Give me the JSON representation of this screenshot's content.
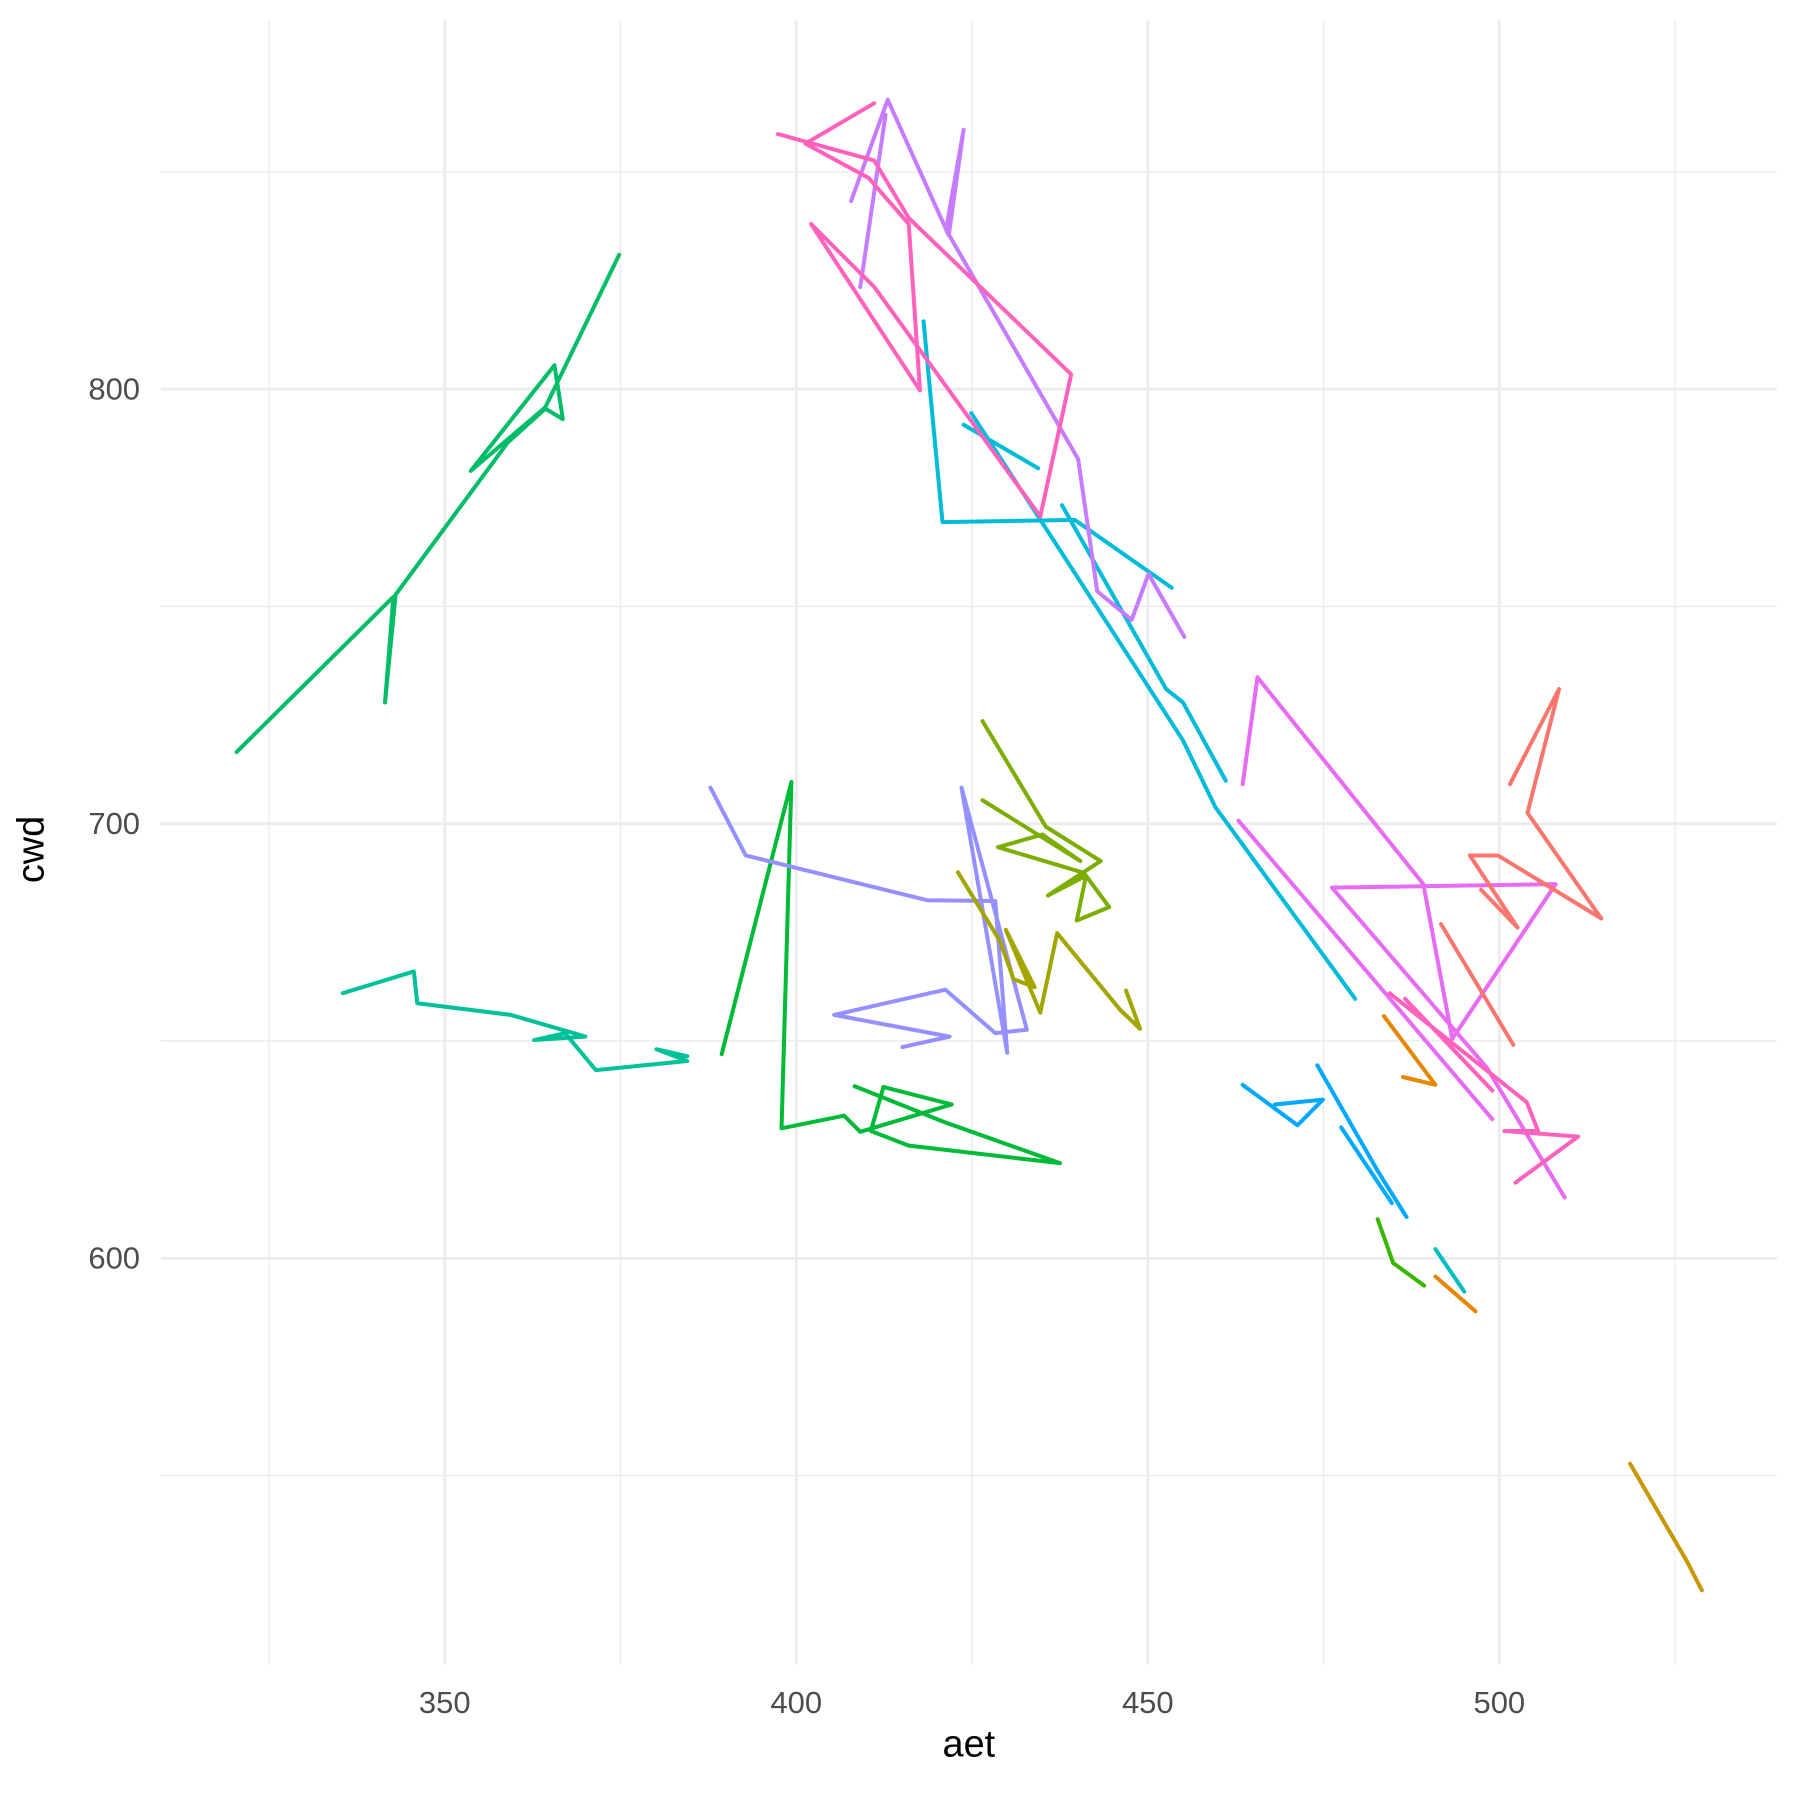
{
  "chart_data": {
    "type": "line",
    "x_label": "aet",
    "y_label": "cwd",
    "xlim": [
      309.6,
      539.5
    ],
    "ylim": [
      506.5,
      884.8
    ],
    "xticks": [
      350,
      400,
      450,
      500
    ],
    "yticks": [
      600,
      700,
      800
    ],
    "x_minor_ticks": [
      325,
      375,
      425,
      475,
      525
    ],
    "y_minor_ticks": [
      550,
      650,
      750,
      850
    ],
    "grid": true,
    "series": [
      {
        "color": "#00BE67",
        "x": [
          320.4,
          342.7,
          341.5,
          343.0,
          359.0,
          364.3,
          366.8,
          365.6,
          353.7,
          364.3,
          374.8
        ],
        "values": [
          716.5,
          752.2,
          727.9,
          752.7,
          787.8,
          795.5,
          793.1,
          805.5,
          781.2,
          795.8,
          830.9
        ]
      },
      {
        "color": "#00C19A",
        "x": [
          335.5,
          345.6,
          346.1,
          359.4,
          370.0,
          362.7,
          367.1,
          371.5,
          384.5,
          380.1,
          384.5
        ],
        "values": [
          661.0,
          666.0,
          658.7,
          656.0,
          651.0,
          650.2,
          651.8,
          643.3,
          645.4,
          648.1,
          646.5
        ]
      },
      {
        "color": "#00BA38",
        "x": [
          389.4,
          399.3,
          397.9,
          406.8,
          409.1,
          422.1,
          412.4,
          410.6,
          416.0,
          437.5,
          421.3,
          408.3
        ],
        "values": [
          647.0,
          709.6,
          629.9,
          632.8,
          629.1,
          635.4,
          639.4,
          629.3,
          625.9,
          621.9,
          631.2,
          639.6
        ]
      },
      {
        "color": "#9590FF",
        "x": [
          387.8,
          392.8,
          418.6,
          428.3,
          430.0,
          423.5,
          432.8,
          428.3,
          421.2,
          405.4,
          421.8,
          415.1
        ],
        "values": [
          708.3,
          692.7,
          682.4,
          682.2,
          647.3,
          708.3,
          652.6,
          651.8,
          661.8,
          656.0,
          651.0,
          648.6
        ]
      },
      {
        "color": "#7CAE00",
        "x": [
          426.5,
          435.5,
          443.3,
          435.8,
          441.2,
          439.9,
          444.5,
          440.9,
          428.7,
          435.0,
          440.4,
          426.5
        ],
        "values": [
          723.6,
          699.3,
          691.4,
          683.5,
          688.0,
          677.7,
          680.8,
          688.7,
          694.6,
          697.5,
          691.4,
          705.4
        ]
      },
      {
        "color": "#A3A500",
        "x": [
          423.0,
          429.0,
          430.9,
          433.9,
          429.8,
          434.7,
          437.1,
          446.1,
          448.9,
          446.9
        ],
        "values": [
          688.8,
          672.9,
          664.2,
          662.4,
          675.6,
          656.5,
          674.8,
          657.1,
          652.8,
          661.6
        ]
      },
      {
        "color": "#00BCD8",
        "x": [
          418.1,
          420.8,
          439.6,
          453.4,
          null,
          423.8,
          434.4,
          null,
          437.8,
          452.6,
          455.0,
          461.1,
          null,
          424.9,
          455.0,
          459.6,
          479.5
        ],
        "values": [
          815.6,
          769.4,
          769.9,
          754.3,
          null,
          791.8,
          781.8,
          null,
          773.3,
          731.0,
          727.9,
          709.9,
          null,
          794.5,
          719.2,
          703.8,
          659.7
        ]
      },
      {
        "color": "#C77CFF",
        "x": [
          407.8,
          413.0,
          421.7,
          423.8,
          421.3,
          440.1,
          442.8,
          447.7,
          450.1,
          455.2,
          null,
          409.1,
          412.7
        ],
        "values": [
          843.3,
          866.6,
          835.4,
          859.7,
          836.7,
          783.9,
          753.5,
          746.9,
          757.5,
          743.0,
          null,
          823.5,
          863.1
        ]
      },
      {
        "color": "#E76BF3",
        "x": [
          463.5,
          465.6,
          489.2,
          493.3,
          508.0,
          476.2,
          498.2,
          509.3,
          null,
          462.9,
          499.0
        ],
        "values": [
          709.1,
          733.7,
          686.1,
          650.5,
          686.1,
          685.3,
          643.9,
          614.0,
          null,
          700.7,
          632.0
        ]
      },
      {
        "color": "#FF62BC",
        "x": [
          397.4,
          411.1,
          416.0,
          439.1,
          434.7,
          411.1,
          402.1,
          417.6,
          416.0,
          410.3,
          401.3,
          411.1,
          null,
          484.4,
          503.9,
          505.5,
          500.7,
          511.2,
          502.3,
          null,
          486.6,
          499.0
        ],
        "values": [
          858.7,
          852.6,
          839.4,
          803.4,
          770.7,
          823.5,
          838.0,
          799.7,
          838.0,
          848.6,
          856.5,
          865.8,
          null,
          661.0,
          635.9,
          629.3,
          629.3,
          628.0,
          617.4,
          null,
          659.7,
          638.6
        ]
      },
      {
        "color": "#F8766D",
        "x": [
          501.5,
          508.5,
          504.0,
          514.5,
          499.8,
          495.8,
          502.6,
          497.4,
          null,
          491.7,
          502.0
        ],
        "values": [
          709.1,
          731.0,
          702.5,
          678.2,
          692.7,
          692.7,
          676.1,
          684.8,
          null,
          676.9,
          649.1
        ]
      },
      {
        "color": "#00A9FF",
        "x": [
          463.5,
          471.3,
          474.9,
          468.1,
          null,
          474.1,
          482.7,
          486.8,
          null,
          477.5,
          484.7
        ],
        "values": [
          639.9,
          630.6,
          636.5,
          635.4,
          null,
          644.4,
          620.1,
          609.5,
          null,
          630.1,
          612.7
        ]
      },
      {
        "color": "#39B600",
        "x": [
          482.7,
          484.9,
          489.3
        ],
        "values": [
          609.0,
          598.9,
          593.7
        ]
      },
      {
        "color": "#00BFC4",
        "x": [
          490.9,
          495.0
        ],
        "values": [
          602.1,
          592.3
        ]
      },
      {
        "color": "#E58700",
        "x": [
          483.6,
          490.9,
          486.3,
          null,
          490.9,
          496.6
        ],
        "values": [
          655.7,
          639.9,
          641.7,
          null,
          595.8,
          587.8
        ]
      },
      {
        "color": "#C99800",
        "x": [
          518.6,
          526.7,
          528.8
        ],
        "values": [
          552.7,
          530.2,
          523.6
        ]
      }
    ]
  }
}
